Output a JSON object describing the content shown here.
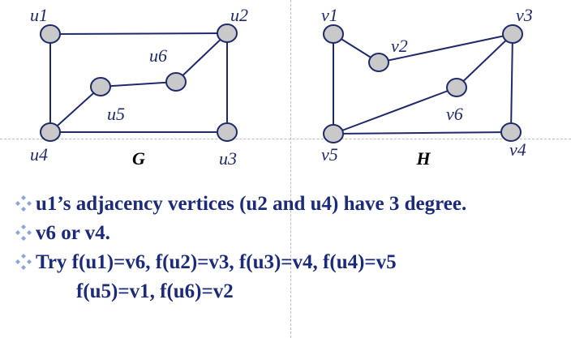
{
  "graphs": [
    {
      "name": "G",
      "vertices": [
        {
          "id": "u1",
          "label": "u1"
        },
        {
          "id": "u2",
          "label": "u2"
        },
        {
          "id": "u3",
          "label": "u3"
        },
        {
          "id": "u4",
          "label": "u4"
        },
        {
          "id": "u5",
          "label": "u5"
        },
        {
          "id": "u6",
          "label": "u6"
        }
      ],
      "edges": [
        [
          "u1",
          "u2"
        ],
        [
          "u1",
          "u4"
        ],
        [
          "u2",
          "u3"
        ],
        [
          "u2",
          "u6"
        ],
        [
          "u3",
          "u4"
        ],
        [
          "u4",
          "u5"
        ],
        [
          "u5",
          "u6"
        ]
      ]
    },
    {
      "name": "H",
      "vertices": [
        {
          "id": "v1",
          "label": "v1"
        },
        {
          "id": "v2",
          "label": "v2"
        },
        {
          "id": "v3",
          "label": "v3"
        },
        {
          "id": "v4",
          "label": "v4"
        },
        {
          "id": "v5",
          "label": "v5"
        },
        {
          "id": "v6",
          "label": "v6"
        }
      ],
      "edges": [
        [
          "v1",
          "v2"
        ],
        [
          "v1",
          "v5"
        ],
        [
          "v2",
          "v3"
        ],
        [
          "v3",
          "v4"
        ],
        [
          "v3",
          "v6"
        ],
        [
          "v4",
          "v5"
        ],
        [
          "v5",
          "v6"
        ]
      ]
    }
  ],
  "bullets": [
    "u1’s adjacency vertices (u2 and u4) have 3 degree.",
    "v6 or v4.",
    "Try f(u1)=v6, f(u2)=v3, f(u3)=v4, f(u4)=v5"
  ],
  "continuation": "f(u5)=v1, f(u6)=v2",
  "colors": {
    "text": "#1b2a7a",
    "edge": "#1f2a6b",
    "vertex_fill": "#c9c9c9",
    "bullet_icon": "#8aa6d8"
  }
}
